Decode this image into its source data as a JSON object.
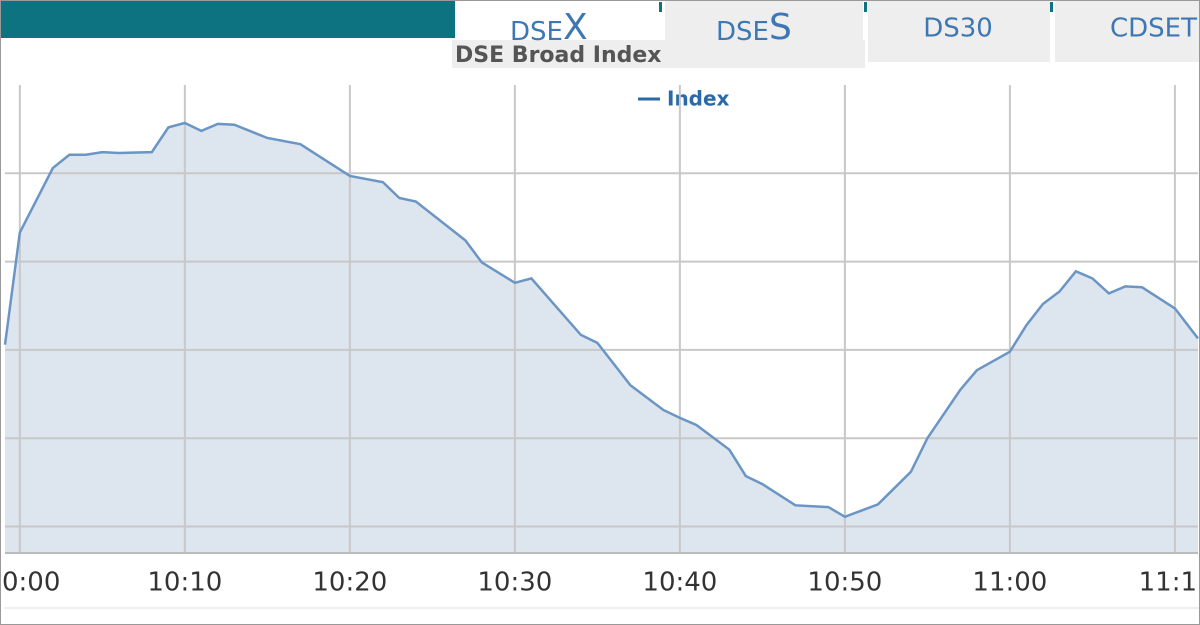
{
  "tabs": [
    {
      "prefix": "DSE",
      "suffix": "X"
    },
    {
      "prefix": "DSE",
      "suffix": "S"
    },
    {
      "label": "DS30"
    },
    {
      "label": "CDSET"
    }
  ],
  "chart_data": {
    "type": "area",
    "title": "DSE Broad Index",
    "series": [
      {
        "name": "Index",
        "color": "#6a95c4",
        "fill": "#dde5ef",
        "x": [
          -0.9,
          0,
          2,
          3,
          4,
          5,
          6,
          8,
          9,
          10,
          11,
          12,
          13,
          15,
          17,
          20,
          22,
          23,
          24,
          27,
          28,
          30,
          31,
          34,
          35,
          37,
          39,
          40,
          41,
          43,
          44,
          45,
          47,
          49,
          50,
          52,
          54,
          55,
          57,
          58,
          60,
          61,
          62,
          63,
          64,
          65,
          66,
          67,
          68,
          70,
          71.4
        ],
        "values": [
          3.06,
          4.33,
          5.06,
          5.21,
          5.21,
          5.24,
          5.23,
          5.24,
          5.52,
          5.57,
          5.48,
          5.56,
          5.55,
          5.4,
          5.33,
          4.97,
          4.9,
          4.72,
          4.68,
          4.24,
          3.99,
          3.76,
          3.81,
          3.17,
          3.08,
          2.6,
          2.32,
          2.23,
          2.15,
          1.87,
          1.57,
          1.48,
          1.24,
          1.22,
          1.11,
          1.25,
          1.62,
          2.0,
          2.55,
          2.77,
          2.98,
          3.28,
          3.52,
          3.66,
          3.89,
          3.81,
          3.64,
          3.72,
          3.71,
          3.47,
          3.13
        ]
      }
    ],
    "xlim": [
      -0.9,
      71.4
    ],
    "xticks": [
      {
        "value": 0,
        "label": "0:00"
      },
      {
        "value": 10,
        "label": "10:10"
      },
      {
        "value": 20,
        "label": "10:20"
      },
      {
        "value": 30,
        "label": "10:30"
      },
      {
        "value": 40,
        "label": "10:40"
      },
      {
        "value": 50,
        "label": "10:50"
      },
      {
        "value": 60,
        "label": "11:00"
      },
      {
        "value": 70,
        "label": "11:1"
      }
    ],
    "ylim": [
      0.7,
      6
    ],
    "yticks": [
      1,
      2,
      3,
      4,
      5
    ],
    "grid": true
  }
}
